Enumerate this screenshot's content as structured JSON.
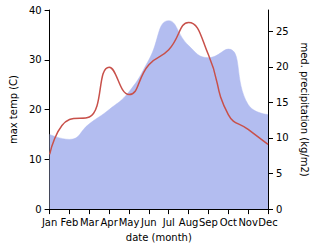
{
  "chart_data": {
    "type": "line",
    "xlabel": "date (month)",
    "ylabel": "max temp (C)",
    "y2label": "med. precipitation (kg/m2)",
    "categories": [
      "Jan",
      "Feb",
      "Mar",
      "Apr",
      "May",
      "Jun",
      "Jul",
      "Aug",
      "Sep",
      "Oct",
      "Nov",
      "Dec"
    ],
    "ylim": [
      0,
      40
    ],
    "yticks": [
      0,
      10,
      20,
      30,
      40
    ],
    "y2lim": [
      0,
      28
    ],
    "y2ticks": [
      0,
      5,
      10,
      15,
      20,
      25
    ],
    "grid": false,
    "series": [
      {
        "name": "med. precipitation",
        "type": "area",
        "axis": "y2",
        "color": "#b3bdf0",
        "values": [
          10.5,
          9.8,
          12,
          14,
          16.5,
          21,
          26.5,
          23,
          21.3,
          22.5,
          14.7,
          13.3
        ]
      },
      {
        "name": "max temp",
        "type": "line",
        "axis": "y",
        "color": "#c8504a",
        "values": [
          11,
          18,
          18.5,
          28.5,
          23,
          29,
          32,
          37.5,
          31,
          19,
          16,
          13
        ]
      }
    ]
  }
}
